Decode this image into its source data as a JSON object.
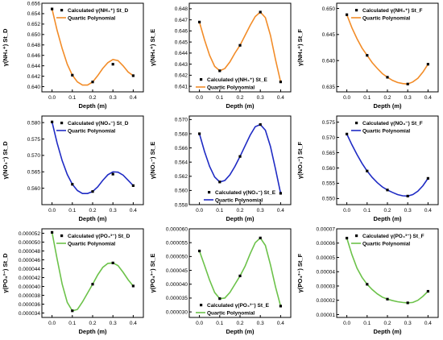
{
  "colors": {
    "orange": "#F28C28",
    "blue": "#1F2BC4",
    "green": "#6CC24A",
    "marker": "#000000"
  },
  "chart_data": [
    {
      "type": "line",
      "xlabel": "Depth (m)",
      "ylabel": "γ(NH₄⁺) St_D",
      "xlim": [
        -0.05,
        0.45
      ],
      "ylim": [
        0.639,
        0.656
      ],
      "xticks": [
        "0.0",
        "0.1",
        "0.2",
        "0.3",
        "0.4"
      ],
      "yticks": [
        "0.640",
        "0.642",
        "0.644",
        "0.646",
        "0.648",
        "0.650",
        "0.652",
        "0.654",
        "0.656"
      ],
      "legend_position": "top-right",
      "series": [
        {
          "name": "Calculated γ(NH₄⁺) St_D",
          "kind": "scatter",
          "x": [
            0.0,
            0.1,
            0.2,
            0.3,
            0.4
          ],
          "y": [
            0.6549,
            0.6422,
            0.6409,
            0.6443,
            0.6421
          ]
        },
        {
          "name": "Quartic Polynomial",
          "kind": "line",
          "color": "orange",
          "x": [
            0.0,
            0.025,
            0.05,
            0.075,
            0.1,
            0.125,
            0.15,
            0.175,
            0.2,
            0.225,
            0.25,
            0.275,
            0.3,
            0.325,
            0.35,
            0.375,
            0.4
          ],
          "y": [
            0.6549,
            0.6508,
            0.6473,
            0.6443,
            0.6422,
            0.6409,
            0.6403,
            0.6403,
            0.6409,
            0.6421,
            0.6435,
            0.6446,
            0.6452,
            0.645,
            0.644,
            0.6428,
            0.6421
          ]
        }
      ]
    },
    {
      "type": "line",
      "xlabel": "Depth (m)",
      "ylabel": "γ(NH₄⁺) St_E",
      "xlim": [
        -0.05,
        0.45
      ],
      "ylim": [
        0.6405,
        0.6485
      ],
      "xticks": [
        "0.0",
        "0.1",
        "0.2",
        "0.3",
        "0.4"
      ],
      "yticks": [
        "0.641",
        "0.642",
        "0.643",
        "0.644",
        "0.645",
        "0.646",
        "0.647",
        "0.648"
      ],
      "legend_position": "bottom-left",
      "series": [
        {
          "name": "Calculated γ(NH₄⁺) St_E",
          "kind": "scatter",
          "x": [
            0.0,
            0.1,
            0.2,
            0.3,
            0.4
          ],
          "y": [
            0.6468,
            0.6424,
            0.6447,
            0.6477,
            0.6414
          ]
        },
        {
          "name": "Quartic Polynomial",
          "kind": "line",
          "color": "orange",
          "x": [
            0.0,
            0.025,
            0.05,
            0.075,
            0.1,
            0.125,
            0.15,
            0.175,
            0.2,
            0.225,
            0.25,
            0.275,
            0.3,
            0.325,
            0.35,
            0.375,
            0.4
          ],
          "y": [
            0.6468,
            0.6452,
            0.6438,
            0.6428,
            0.6424,
            0.6426,
            0.6432,
            0.644,
            0.6447,
            0.6456,
            0.6465,
            0.6473,
            0.6477,
            0.6472,
            0.6456,
            0.6434,
            0.6414
          ]
        }
      ]
    },
    {
      "type": "line",
      "xlabel": "Depth (m)",
      "ylabel": "γ(NH₄⁺) St_F",
      "xlim": [
        -0.05,
        0.45
      ],
      "ylim": [
        0.634,
        0.651
      ],
      "xticks": [
        "0.0",
        "0.1",
        "0.2",
        "0.3",
        "0.4"
      ],
      "yticks": [
        "0.635",
        "0.640",
        "0.645",
        "0.650"
      ],
      "legend_position": "top-right",
      "series": [
        {
          "name": "Calculated γ(NH₄⁺) St_F",
          "kind": "scatter",
          "x": [
            0.0,
            0.1,
            0.2,
            0.3,
            0.4
          ],
          "y": [
            0.6488,
            0.641,
            0.6368,
            0.6355,
            0.6393
          ]
        },
        {
          "name": "Quartic Polynomial",
          "kind": "line",
          "color": "orange",
          "x": [
            0.0,
            0.025,
            0.05,
            0.075,
            0.1,
            0.125,
            0.15,
            0.175,
            0.2,
            0.225,
            0.25,
            0.275,
            0.3,
            0.325,
            0.35,
            0.375,
            0.4
          ],
          "y": [
            0.6488,
            0.6463,
            0.6442,
            0.6424,
            0.641,
            0.6396,
            0.6385,
            0.6375,
            0.6368,
            0.6362,
            0.6358,
            0.6356,
            0.6355,
            0.6359,
            0.6366,
            0.6378,
            0.6393
          ]
        }
      ]
    },
    {
      "type": "line",
      "xlabel": "Depth (m)",
      "ylabel": "γ(NO₃⁻) St_D",
      "xlim": [
        -0.05,
        0.45
      ],
      "ylim": [
        0.555,
        0.582
      ],
      "xticks": [
        "0.0",
        "0.1",
        "0.2",
        "0.3",
        "0.4"
      ],
      "yticks": [
        "0.560",
        "0.565",
        "0.570",
        "0.575",
        "0.580"
      ],
      "legend_position": "top-right",
      "series": [
        {
          "name": "Calculated γ(NO₃⁻) St_D",
          "kind": "scatter",
          "x": [
            0.0,
            0.1,
            0.2,
            0.3,
            0.4
          ],
          "y": [
            0.5802,
            0.5612,
            0.559,
            0.5643,
            0.5608
          ]
        },
        {
          "name": "Quartic Polynomial",
          "kind": "line",
          "color": "blue",
          "x": [
            0.0,
            0.025,
            0.05,
            0.075,
            0.1,
            0.125,
            0.15,
            0.175,
            0.2,
            0.225,
            0.25,
            0.275,
            0.3,
            0.325,
            0.35,
            0.375,
            0.4
          ],
          "y": [
            0.5802,
            0.5738,
            0.5684,
            0.5642,
            0.5612,
            0.5593,
            0.5584,
            0.5584,
            0.559,
            0.5604,
            0.5624,
            0.5641,
            0.565,
            0.5649,
            0.564,
            0.5624,
            0.5608
          ]
        }
      ]
    },
    {
      "type": "line",
      "xlabel": "Depth (m)",
      "ylabel": "γ(NO₃⁻) St_E",
      "xlim": [
        -0.05,
        0.45
      ],
      "ylim": [
        0.558,
        0.5705
      ],
      "xticks": [
        "0.0",
        "0.1",
        "0.2",
        "0.3",
        "0.4"
      ],
      "yticks": [
        "0.558",
        "0.560",
        "0.562",
        "0.564",
        "0.566",
        "0.568",
        "0.570"
      ],
      "legend_position": "bottom-right",
      "series": [
        {
          "name": "Calculated γ(NO₃⁻) St_E",
          "kind": "scatter",
          "x": [
            0.0,
            0.1,
            0.2,
            0.3,
            0.4
          ],
          "y": [
            0.568,
            0.5612,
            0.5648,
            0.5693,
            0.5596
          ]
        },
        {
          "name": "Quartic Polynomial",
          "kind": "line",
          "color": "blue",
          "x": [
            0.0,
            0.025,
            0.05,
            0.075,
            0.1,
            0.125,
            0.15,
            0.175,
            0.2,
            0.225,
            0.25,
            0.275,
            0.3,
            0.325,
            0.35,
            0.375,
            0.4
          ],
          "y": [
            0.568,
            0.5655,
            0.5634,
            0.5619,
            0.5612,
            0.5614,
            0.5622,
            0.5634,
            0.5648,
            0.5663,
            0.5678,
            0.569,
            0.5693,
            0.5685,
            0.5662,
            0.563,
            0.5596
          ]
        }
      ]
    },
    {
      "type": "line",
      "xlabel": "Depth (m)",
      "ylabel": "γ(NO₃⁻) St_F",
      "xlim": [
        -0.05,
        0.45
      ],
      "ylim": [
        0.548,
        0.577
      ],
      "xticks": [
        "0.0",
        "0.1",
        "0.2",
        "0.3",
        "0.4"
      ],
      "yticks": [
        "0.550",
        "0.555",
        "0.560",
        "0.565",
        "0.570",
        "0.575"
      ],
      "legend_position": "top-right",
      "series": [
        {
          "name": "Calculated γ(NO₃⁻) St_F",
          "kind": "scatter",
          "x": [
            0.0,
            0.1,
            0.2,
            0.3,
            0.4
          ],
          "y": [
            0.5711,
            0.559,
            0.5528,
            0.5508,
            0.5566
          ]
        },
        {
          "name": "Quartic Polynomial",
          "kind": "line",
          "color": "blue",
          "x": [
            0.0,
            0.025,
            0.05,
            0.075,
            0.1,
            0.125,
            0.15,
            0.175,
            0.2,
            0.225,
            0.25,
            0.275,
            0.3,
            0.325,
            0.35,
            0.375,
            0.4
          ],
          "y": [
            0.5711,
            0.5676,
            0.5644,
            0.5615,
            0.559,
            0.5569,
            0.5552,
            0.5538,
            0.5528,
            0.552,
            0.5513,
            0.5509,
            0.5508,
            0.5513,
            0.5524,
            0.5542,
            0.5566
          ]
        }
      ]
    },
    {
      "type": "line",
      "xlabel": "Depth (m)",
      "ylabel": "γ(PO₄³⁻) St_D",
      "xlim": [
        -0.05,
        0.45
      ],
      "ylim": [
        3.3e-05,
        5.3e-05
      ],
      "xticks": [
        "0.0",
        "0.1",
        "0.2",
        "0.3",
        "0.4"
      ],
      "yticks": [
        "0.000034",
        "0.000036",
        "0.000038",
        "0.000040",
        "0.000042",
        "0.000044",
        "0.000046",
        "0.000048",
        "0.000050",
        "0.000052"
      ],
      "legend_position": "top-right",
      "series": [
        {
          "name": "Calculated γ(PO₄³⁻) St_D",
          "kind": "scatter",
          "x": [
            0.0,
            0.1,
            0.2,
            0.3,
            0.4
          ],
          "y": [
            5.22e-05,
            3.45e-05,
            4.05e-05,
            4.53e-05,
            4.01e-05
          ]
        },
        {
          "name": "Quartic Polynomial",
          "kind": "line",
          "color": "green",
          "x": [
            0.0,
            0.025,
            0.05,
            0.075,
            0.1,
            0.125,
            0.15,
            0.175,
            0.2,
            0.225,
            0.25,
            0.275,
            0.3,
            0.325,
            0.35,
            0.375,
            0.4
          ],
          "y": [
            5.22e-05,
            4.62e-05,
            4.05e-05,
            3.64e-05,
            3.45e-05,
            3.48e-05,
            3.65e-05,
            3.85e-05,
            4.05e-05,
            4.26e-05,
            4.43e-05,
            4.52e-05,
            4.53e-05,
            4.47e-05,
            4.32e-05,
            4.15e-05,
            4.01e-05
          ]
        }
      ]
    },
    {
      "type": "line",
      "xlabel": "Depth (m)",
      "ylabel": "γ(PO₄³⁻) St_E",
      "xlim": [
        -0.05,
        0.45
      ],
      "ylim": [
        2.8e-05,
        6e-05
      ],
      "xticks": [
        "0.0",
        "0.1",
        "0.2",
        "0.3",
        "0.4"
      ],
      "yticks": [
        "0.000030",
        "0.000035",
        "0.000040",
        "0.000045",
        "0.000050",
        "0.000055",
        "0.000060"
      ],
      "legend_position": "bottom-left",
      "series": [
        {
          "name": "Calculated γ(PO₄³⁻) St_E",
          "kind": "scatter",
          "x": [
            0.0,
            0.1,
            0.2,
            0.3,
            0.4
          ],
          "y": [
            5.2e-05,
            3.48e-05,
            4.3e-05,
            5.67e-05,
            3.21e-05
          ]
        },
        {
          "name": "Quartic Polynomial",
          "kind": "line",
          "color": "green",
          "x": [
            0.0,
            0.025,
            0.05,
            0.075,
            0.1,
            0.125,
            0.15,
            0.175,
            0.2,
            0.225,
            0.25,
            0.275,
            0.3,
            0.325,
            0.35,
            0.375,
            0.4
          ],
          "y": [
            5.2e-05,
            4.68e-05,
            4.15e-05,
            3.7e-05,
            3.48e-05,
            3.5e-05,
            3.7e-05,
            4e-05,
            4.3e-05,
            4.65e-05,
            5.1e-05,
            5.5e-05,
            5.67e-05,
            5.4e-05,
            4.7e-05,
            3.9e-05,
            3.21e-05
          ]
        }
      ]
    },
    {
      "type": "line",
      "xlabel": "Depth (m)",
      "ylabel": "γ(PO₄³⁻) St_F",
      "xlim": [
        -0.05,
        0.45
      ],
      "ylim": [
        8e-06,
        7e-05
      ],
      "xticks": [
        "0.0",
        "0.1",
        "0.2",
        "0.3",
        "0.4"
      ],
      "yticks": [
        "0.00001",
        "0.00002",
        "0.00003",
        "0.00004",
        "0.00005",
        "0.00006",
        "0.00007"
      ],
      "legend_position": "top-right",
      "series": [
        {
          "name": "Calculated γ(PO₄³⁻) St_F",
          "kind": "scatter",
          "x": [
            0.0,
            0.1,
            0.2,
            0.3,
            0.4
          ],
          "y": [
            6.35e-05,
            3.12e-05,
            2.08e-05,
            1.82e-05,
            2.63e-05
          ]
        },
        {
          "name": "Quartic Polynomial",
          "kind": "line",
          "color": "green",
          "x": [
            0.0,
            0.025,
            0.05,
            0.075,
            0.1,
            0.125,
            0.15,
            0.175,
            0.2,
            0.225,
            0.25,
            0.275,
            0.3,
            0.325,
            0.35,
            0.375,
            0.4
          ],
          "y": [
            6.35e-05,
            5.2e-05,
            4.25e-05,
            3.6e-05,
            3.12e-05,
            2.75e-05,
            2.45e-05,
            2.22e-05,
            2.08e-05,
            1.98e-05,
            1.9e-05,
            1.85e-05,
            1.82e-05,
            1.85e-05,
            2e-05,
            2.28e-05,
            2.63e-05
          ]
        }
      ]
    }
  ]
}
